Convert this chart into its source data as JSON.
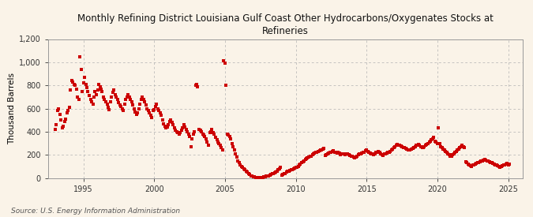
{
  "title": "Monthly Refining District Louisiana Gulf Coast Other Hydrocarbons/Oxygenates Stocks at\nRefineries",
  "ylabel": "Thousand Barrels",
  "source": "Source: U.S. Energy Information Administration",
  "background_color": "#faf3e8",
  "dot_color": "#cc0000",
  "ylim": [
    0,
    1200
  ],
  "yticks": [
    0,
    200,
    400,
    600,
    800,
    1000,
    1200
  ],
  "ytick_labels": [
    "0",
    "200",
    "400",
    "600",
    "800",
    "1,000",
    "1,200"
  ],
  "xticks": [
    1995,
    2000,
    2005,
    2010,
    2015,
    2020,
    2025
  ],
  "xlim_start": 1992.5,
  "xlim_end": 2026.0,
  "data": {
    "dates": [
      1993.0,
      1993.08,
      1993.17,
      1993.25,
      1993.33,
      1993.42,
      1993.5,
      1993.58,
      1993.67,
      1993.75,
      1993.83,
      1993.92,
      1994.0,
      1994.08,
      1994.17,
      1994.25,
      1994.33,
      1994.42,
      1994.5,
      1994.58,
      1994.67,
      1994.75,
      1994.83,
      1994.92,
      1995.0,
      1995.08,
      1995.17,
      1995.25,
      1995.33,
      1995.42,
      1995.5,
      1995.58,
      1995.67,
      1995.75,
      1995.83,
      1995.92,
      1996.0,
      1996.08,
      1996.17,
      1996.25,
      1996.33,
      1996.42,
      1996.5,
      1996.58,
      1996.67,
      1996.75,
      1996.83,
      1996.92,
      1997.0,
      1997.08,
      1997.17,
      1997.25,
      1997.33,
      1997.42,
      1997.5,
      1997.58,
      1997.67,
      1997.75,
      1997.83,
      1997.92,
      1998.0,
      1998.08,
      1998.17,
      1998.25,
      1998.33,
      1998.42,
      1998.5,
      1998.58,
      1998.67,
      1998.75,
      1998.83,
      1998.92,
      1999.0,
      1999.08,
      1999.17,
      1999.25,
      1999.33,
      1999.42,
      1999.5,
      1999.58,
      1999.67,
      1999.75,
      1999.83,
      1999.92,
      2000.0,
      2000.08,
      2000.17,
      2000.25,
      2000.33,
      2000.42,
      2000.5,
      2000.58,
      2000.67,
      2000.75,
      2000.83,
      2000.92,
      2001.0,
      2001.08,
      2001.17,
      2001.25,
      2001.33,
      2001.42,
      2001.5,
      2001.58,
      2001.67,
      2001.75,
      2001.83,
      2001.92,
      2002.0,
      2002.08,
      2002.17,
      2002.25,
      2002.33,
      2002.42,
      2002.5,
      2002.58,
      2002.67,
      2002.75,
      2002.83,
      2002.92,
      2003.0,
      2003.08,
      2003.17,
      2003.25,
      2003.33,
      2003.42,
      2003.5,
      2003.58,
      2003.67,
      2003.75,
      2003.83,
      2003.92,
      2004.0,
      2004.08,
      2004.17,
      2004.25,
      2004.33,
      2004.42,
      2004.5,
      2004.58,
      2004.67,
      2004.75,
      2004.83,
      2004.92,
      2005.0,
      2005.08,
      2005.17,
      2005.25,
      2005.33,
      2005.42,
      2005.5,
      2005.58,
      2005.67,
      2005.75,
      2005.83,
      2005.92,
      2006.0,
      2006.08,
      2006.17,
      2006.25,
      2006.33,
      2006.42,
      2006.5,
      2006.58,
      2006.67,
      2006.75,
      2006.83,
      2006.92,
      2007.0,
      2007.08,
      2007.17,
      2007.25,
      2007.33,
      2007.42,
      2007.5,
      2007.58,
      2007.67,
      2007.75,
      2007.83,
      2007.92,
      2008.0,
      2008.08,
      2008.17,
      2008.25,
      2008.33,
      2008.42,
      2008.5,
      2008.58,
      2008.67,
      2008.75,
      2008.83,
      2008.92,
      2009.0,
      2009.08,
      2009.17,
      2009.25,
      2009.33,
      2009.42,
      2009.5,
      2009.58,
      2009.67,
      2009.75,
      2009.83,
      2009.92,
      2010.0,
      2010.08,
      2010.17,
      2010.25,
      2010.33,
      2010.42,
      2010.5,
      2010.58,
      2010.67,
      2010.75,
      2010.83,
      2010.92,
      2011.0,
      2011.08,
      2011.17,
      2011.25,
      2011.33,
      2011.42,
      2011.5,
      2011.58,
      2011.67,
      2011.75,
      2011.83,
      2011.92,
      2012.0,
      2012.08,
      2012.17,
      2012.25,
      2012.33,
      2012.42,
      2012.5,
      2012.58,
      2012.67,
      2012.75,
      2012.83,
      2012.92,
      2013.0,
      2013.08,
      2013.17,
      2013.25,
      2013.33,
      2013.42,
      2013.5,
      2013.58,
      2013.67,
      2013.75,
      2013.83,
      2013.92,
      2014.0,
      2014.08,
      2014.17,
      2014.25,
      2014.33,
      2014.42,
      2014.5,
      2014.58,
      2014.67,
      2014.75,
      2014.83,
      2014.92,
      2015.0,
      2015.08,
      2015.17,
      2015.25,
      2015.33,
      2015.42,
      2015.5,
      2015.58,
      2015.67,
      2015.75,
      2015.83,
      2015.92,
      2016.0,
      2016.08,
      2016.17,
      2016.25,
      2016.33,
      2016.42,
      2016.5,
      2016.58,
      2016.67,
      2016.75,
      2016.83,
      2016.92,
      2017.0,
      2017.08,
      2017.17,
      2017.25,
      2017.33,
      2017.42,
      2017.5,
      2017.58,
      2017.67,
      2017.75,
      2017.83,
      2017.92,
      2018.0,
      2018.08,
      2018.17,
      2018.25,
      2018.33,
      2018.42,
      2018.5,
      2018.58,
      2018.67,
      2018.75,
      2018.83,
      2018.92,
      2019.0,
      2019.08,
      2019.17,
      2019.25,
      2019.33,
      2019.42,
      2019.5,
      2019.58,
      2019.67,
      2019.75,
      2019.83,
      2019.92,
      2020.0,
      2020.08,
      2020.17,
      2020.25,
      2020.33,
      2020.42,
      2020.5,
      2020.58,
      2020.67,
      2020.75,
      2020.83,
      2020.92,
      2021.0,
      2021.08,
      2021.17,
      2021.25,
      2021.33,
      2021.42,
      2021.5,
      2021.58,
      2021.67,
      2021.75,
      2021.83,
      2021.92,
      2022.0,
      2022.08,
      2022.17,
      2022.25,
      2022.33,
      2022.42,
      2022.5,
      2022.58,
      2022.67,
      2022.75,
      2022.83,
      2022.92,
      2023.0,
      2023.08,
      2023.17,
      2023.25,
      2023.33,
      2023.42,
      2023.5,
      2023.58,
      2023.67,
      2023.75,
      2023.83,
      2023.92,
      2024.0,
      2024.08,
      2024.17,
      2024.25,
      2024.33,
      2024.42,
      2024.5,
      2024.58,
      2024.67,
      2024.75,
      2024.83,
      2024.92,
      2025.0,
      2025.08
    ],
    "values": [
      420,
      460,
      580,
      600,
      550,
      500,
      430,
      450,
      490,
      510,
      560,
      580,
      610,
      760,
      840,
      830,
      810,
      800,
      770,
      700,
      680,
      1050,
      940,
      750,
      820,
      870,
      810,
      780,
      750,
      710,
      680,
      660,
      640,
      700,
      750,
      720,
      760,
      810,
      790,
      770,
      750,
      700,
      680,
      660,
      640,
      610,
      590,
      660,
      700,
      740,
      760,
      720,
      700,
      680,
      650,
      630,
      620,
      600,
      580,
      640,
      680,
      700,
      720,
      700,
      680,
      660,
      630,
      600,
      570,
      550,
      560,
      600,
      640,
      680,
      700,
      680,
      660,
      630,
      600,
      580,
      560,
      540,
      520,
      580,
      590,
      620,
      640,
      600,
      580,
      560,
      540,
      500,
      470,
      450,
      430,
      440,
      460,
      490,
      500,
      480,
      460,
      430,
      410,
      400,
      390,
      380,
      390,
      410,
      430,
      460,
      440,
      420,
      400,
      380,
      360,
      270,
      340,
      380,
      400,
      800,
      810,
      790,
      420,
      410,
      400,
      380,
      370,
      360,
      340,
      310,
      280,
      390,
      400,
      420,
      390,
      380,
      350,
      330,
      310,
      300,
      280,
      260,
      240,
      1010,
      990,
      800,
      380,
      370,
      360,
      340,
      300,
      270,
      240,
      210,
      180,
      150,
      130,
      110,
      100,
      90,
      80,
      70,
      60,
      50,
      40,
      30,
      20,
      15,
      12,
      8,
      5,
      3,
      2,
      2,
      2,
      2,
      5,
      8,
      10,
      15,
      18,
      20,
      25,
      30,
      35,
      40,
      45,
      50,
      60,
      70,
      80,
      90,
      25,
      30,
      35,
      40,
      50,
      55,
      60,
      65,
      70,
      75,
      80,
      85,
      90,
      95,
      100,
      110,
      120,
      130,
      140,
      150,
      160,
      170,
      175,
      180,
      185,
      190,
      200,
      210,
      215,
      220,
      225,
      230,
      235,
      240,
      245,
      250,
      255,
      195,
      200,
      210,
      215,
      220,
      225,
      230,
      235,
      220,
      225,
      215,
      220,
      215,
      200,
      205,
      210,
      205,
      200,
      205,
      210,
      200,
      195,
      190,
      185,
      180,
      175,
      180,
      190,
      200,
      205,
      210,
      215,
      220,
      225,
      235,
      240,
      230,
      220,
      215,
      210,
      205,
      200,
      210,
      220,
      225,
      230,
      220,
      210,
      200,
      195,
      205,
      210,
      215,
      220,
      225,
      230,
      240,
      250,
      260,
      270,
      280,
      290,
      285,
      280,
      275,
      270,
      265,
      260,
      255,
      250,
      245,
      240,
      245,
      250,
      255,
      260,
      270,
      280,
      285,
      290,
      280,
      270,
      265,
      260,
      270,
      280,
      290,
      300,
      310,
      320,
      330,
      340,
      350,
      320,
      310,
      300,
      430,
      300,
      270,
      260,
      250,
      240,
      230,
      220,
      210,
      200,
      185,
      190,
      200,
      210,
      220,
      230,
      240,
      250,
      260,
      270,
      280,
      270,
      260,
      140,
      130,
      120,
      110,
      105,
      100,
      110,
      115,
      120,
      125,
      130,
      135,
      140,
      145,
      150,
      155,
      160,
      155,
      150,
      145,
      140,
      135,
      130,
      125,
      120,
      115,
      110,
      105,
      100,
      95,
      100,
      105,
      110,
      115,
      120,
      125,
      110,
      120
    ]
  }
}
